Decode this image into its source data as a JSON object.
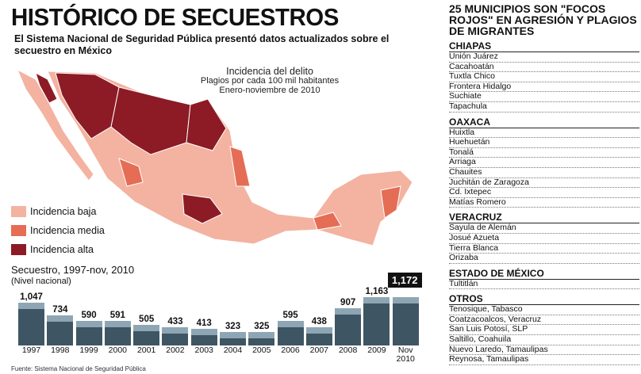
{
  "header": {
    "title": "HISTÓRICO DE SECUESTROS",
    "subtitle": "El Sistema Nacional de Seguridad Pública presentó datos actualizados sobre el secuestro en México"
  },
  "map": {
    "title": "Incidencia del delito",
    "subtitle": "Plagios por cada 100 mil habitantes",
    "period": "Enero-noviembre de 2010",
    "legend": [
      {
        "label": "Incidencia baja",
        "color": "#f3b3a0"
      },
      {
        "label": "Incidencia media",
        "color": "#e56d55"
      },
      {
        "label": "Incidencia alta",
        "color": "#8c1b26"
      }
    ]
  },
  "chart_data": {
    "type": "bar",
    "title": "Secuestro, 1997-nov, 2010",
    "subtitle": "(Nivel nacional)",
    "categories": [
      "1997",
      "1998",
      "1999",
      "2000",
      "2001",
      "2002",
      "2003",
      "2004",
      "2005",
      "2006",
      "2007",
      "2008",
      "2009",
      "Nov 2010"
    ],
    "values": [
      1047,
      734,
      590,
      591,
      505,
      433,
      413,
      323,
      325,
      595,
      438,
      907,
      1163,
      1172
    ],
    "value_labels": [
      "1,047",
      "734",
      "590",
      "591",
      "505",
      "433",
      "413",
      "323",
      "325",
      "595",
      "438",
      "907",
      "1,163",
      "1,172"
    ],
    "color": "#3e5663",
    "highlight": 13
  },
  "source": "Fuente: Sistema Nacional de Seguridad Pública",
  "sidebar": {
    "title": "25 MUNICIPIOS SON  \"FOCOS ROJOS\" EN AGRESIÓN Y PLAGIOS DE MIGRANTES",
    "groups": [
      {
        "name": "CHIAPAS",
        "items": [
          "Unión Juárez",
          "Cacahoatán",
          "Tuxtla Chico",
          "Frontera Hidalgo",
          "Suchiate",
          "Tapachula"
        ]
      },
      {
        "name": "OAXACA",
        "items": [
          "Huixtla",
          "Huehuetán",
          "Tonalá",
          "Arriaga",
          "Chauites",
          "Juchitán de Zaragoza",
          "Cd. Ixtepec",
          "Matías Romero"
        ]
      },
      {
        "name": "VERACRUZ",
        "items": [
          "Sayula de Alemán",
          "Josué Azueta",
          "Tierra Blanca",
          "Orizaba"
        ]
      },
      {
        "name": "ESTADO DE MÉXICO",
        "items": [
          "Tultitlán"
        ]
      },
      {
        "name": "OTROS",
        "items": [
          "Tenosique, Tabasco",
          "Coatzacoalcos, Veracruz",
          "San Luis Potosí, SLP",
          "Saltillo, Coahuila",
          "Nuevo Laredo, Tamaulipas",
          "Reynosa, Tamaulipas"
        ]
      }
    ]
  }
}
